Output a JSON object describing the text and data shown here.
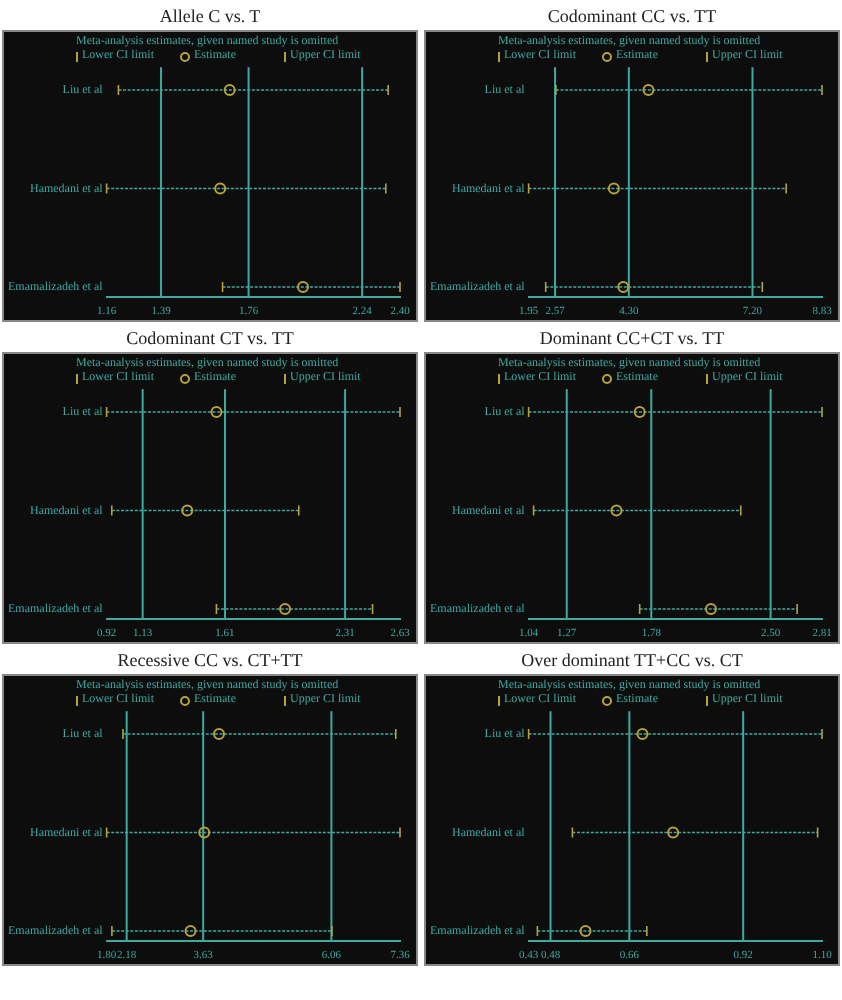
{
  "chart_data": [
    {
      "type": "scatter",
      "title": "Allele C vs. T",
      "subtitle": "Meta-analysis estimates, given named study is omitted",
      "orientation": "horizontal",
      "legend": "top",
      "marker": "circle",
      "grid": false,
      "categories": [
        "Liu et al",
        "Hamedani et al",
        "Emamalizadeh et al"
      ],
      "series": [
        {
          "name": "Estimate",
          "color": "#b5a33a",
          "values": [
            1.68,
            1.64,
            1.99
          ],
          "errors": [
            [
              1.21,
              2.35
            ],
            [
              1.16,
              2.34
            ],
            [
              1.65,
              2.4
            ]
          ]
        }
      ],
      "xlim": [
        1.16,
        2.4
      ],
      "xticks": [
        1.16,
        1.39,
        1.76,
        2.24,
        {
          "value": 2.4,
          "label": "2.40"
        }
      ],
      "ref_lines": [
        {
          "axis": "x",
          "value": 1.39,
          "color": "#3fa9a0"
        },
        {
          "axis": "x",
          "value": 1.76,
          "color": "#3fa9a0"
        },
        {
          "axis": "x",
          "value": 2.24,
          "color": "#3fa9a0"
        }
      ],
      "annotations": [
        "Lower CI limit",
        "Upper CI limit"
      ]
    },
    {
      "type": "scatter",
      "title": "Codominant CC vs. TT",
      "subtitle": "Meta-analysis estimates, given named study is omitted",
      "orientation": "horizontal",
      "legend": "top",
      "marker": "circle",
      "grid": false,
      "categories": [
        "Liu et al",
        "Hamedani et al",
        "Emamalizadeh et al"
      ],
      "series": [
        {
          "name": "Estimate",
          "color": "#b5a33a",
          "values": [
            4.76,
            3.95,
            4.17
          ],
          "errors": [
            [
              2.59,
              8.83
            ],
            [
              1.95,
              7.99
            ],
            [
              2.35,
              7.43
            ]
          ]
        }
      ],
      "xlim": [
        1.95,
        8.83
      ],
      "xticks": [
        1.95,
        2.57,
        {
          "value": 4.3,
          "label": "4.30"
        },
        {
          "value": 7.2,
          "label": "7.20"
        },
        8.83
      ],
      "ref_lines": [
        {
          "axis": "x",
          "value": 2.57,
          "color": "#3fa9a0"
        },
        {
          "axis": "x",
          "value": 4.3,
          "color": "#3fa9a0"
        },
        {
          "axis": "x",
          "value": 7.2,
          "color": "#3fa9a0"
        }
      ],
      "annotations": [
        "Lower CI limit",
        "Upper CI limit"
      ]
    },
    {
      "type": "scatter",
      "title": "Codominant CT vs. TT",
      "subtitle": "Meta-analysis estimates, given named study is omitted",
      "orientation": "horizontal",
      "legend": "top",
      "marker": "circle",
      "grid": false,
      "categories": [
        "Liu et al",
        "Hamedani et al",
        "Emamalizadeh et al"
      ],
      "series": [
        {
          "name": "Estimate",
          "color": "#b5a33a",
          "values": [
            1.56,
            1.39,
            1.96
          ],
          "errors": [
            [
              0.92,
              2.63
            ],
            [
              0.95,
              2.04
            ],
            [
              1.56,
              2.47
            ]
          ]
        }
      ],
      "xlim": [
        0.92,
        2.63
      ],
      "xticks": [
        0.92,
        1.13,
        1.61,
        2.31,
        2.63
      ],
      "ref_lines": [
        {
          "axis": "x",
          "value": 1.13,
          "color": "#3fa9a0"
        },
        {
          "axis": "x",
          "value": 1.61,
          "color": "#3fa9a0"
        },
        {
          "axis": "x",
          "value": 2.31,
          "color": "#3fa9a0"
        }
      ],
      "annotations": [
        "Lower CI limit",
        "Upper CI limit"
      ]
    },
    {
      "type": "scatter",
      "title": "Dominant CC+CT vs. TT",
      "subtitle": "Meta-analysis estimates, given named study is omitted",
      "orientation": "horizontal",
      "legend": "top",
      "marker": "circle",
      "grid": false,
      "categories": [
        "Liu et al",
        "Hamedani et al",
        "Emamalizadeh et al"
      ],
      "series": [
        {
          "name": "Estimate",
          "color": "#b5a33a",
          "values": [
            1.71,
            1.57,
            2.14
          ],
          "errors": [
            [
              1.04,
              2.81
            ],
            [
              1.07,
              2.32
            ],
            [
              1.71,
              2.66
            ]
          ]
        }
      ],
      "xlim": [
        1.04,
        2.81
      ],
      "xticks": [
        1.04,
        1.27,
        1.78,
        {
          "value": 2.5,
          "label": "2.50"
        },
        2.81
      ],
      "ref_lines": [
        {
          "axis": "x",
          "value": 1.27,
          "color": "#3fa9a0"
        },
        {
          "axis": "x",
          "value": 1.78,
          "color": "#3fa9a0"
        },
        {
          "axis": "x",
          "value": 2.5,
          "color": "#3fa9a0"
        }
      ],
      "annotations": [
        "Lower CI limit",
        "Upper CI limit"
      ]
    },
    {
      "type": "scatter",
      "title": "Recessive CC vs. CT+TT",
      "subtitle": "Meta-analysis estimates, given named study is omitted",
      "orientation": "horizontal",
      "legend": "top",
      "marker": "circle",
      "grid": false,
      "categories": [
        "Liu et al",
        "Hamedani et al",
        "Emamalizadeh et al"
      ],
      "series": [
        {
          "name": "Estimate",
          "color": "#b5a33a",
          "values": [
            3.93,
            3.65,
            3.39
          ],
          "errors": [
            [
              2.11,
              7.28
            ],
            [
              1.8,
              7.36
            ],
            [
              1.9,
              6.07
            ]
          ]
        }
      ],
      "xlim": [
        1.8,
        7.36
      ],
      "xticks": [
        {
          "value": 1.8,
          "label": "1.80"
        },
        2.18,
        3.63,
        6.06,
        7.36
      ],
      "ref_lines": [
        {
          "axis": "x",
          "value": 2.18,
          "color": "#3fa9a0"
        },
        {
          "axis": "x",
          "value": 3.63,
          "color": "#3fa9a0"
        },
        {
          "axis": "x",
          "value": 6.06,
          "color": "#3fa9a0"
        }
      ],
      "annotations": [
        "Lower CI limit",
        "Upper CI limit"
      ]
    },
    {
      "type": "scatter",
      "title": "Over dominant TT+CC vs. CT",
      "subtitle": "Meta-analysis estimates, given named study is omitted",
      "orientation": "horizontal",
      "legend": "top",
      "marker": "circle",
      "grid": false,
      "categories": [
        "Liu et al",
        "Hamedani et al",
        "Emamalizadeh et al"
      ],
      "series": [
        {
          "name": "Estimate",
          "color": "#b5a33a",
          "values": [
            0.69,
            0.76,
            0.56
          ],
          "errors": [
            [
              0.43,
              1.1
            ],
            [
              0.53,
              1.09
            ],
            [
              0.45,
              0.7
            ]
          ]
        }
      ],
      "xlim": [
        0.43,
        1.1
      ],
      "xticks": [
        0.43,
        0.48,
        0.66,
        0.92,
        {
          "value": 1.1,
          "label": "1.10"
        }
      ],
      "ref_lines": [
        {
          "axis": "x",
          "value": 0.48,
          "color": "#3fa9a0"
        },
        {
          "axis": "x",
          "value": 0.66,
          "color": "#3fa9a0"
        },
        {
          "axis": "x",
          "value": 0.92,
          "color": "#3fa9a0"
        }
      ],
      "annotations": [
        "Lower CI limit",
        "Upper CI limit"
      ]
    }
  ]
}
